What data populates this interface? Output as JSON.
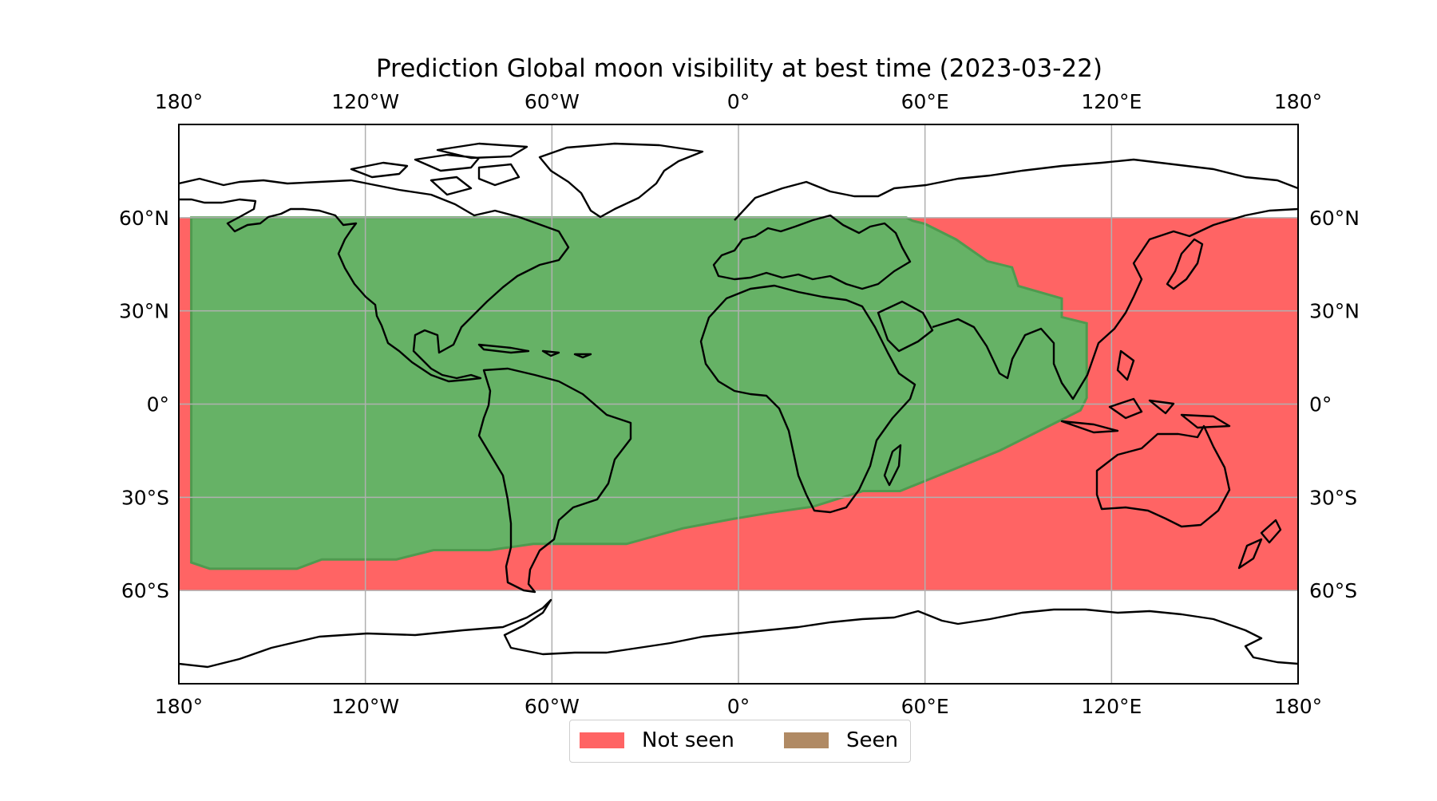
{
  "title": "Prediction Global moon visibility at best time (2023-03-22)",
  "map": {
    "projection": "PlateCarree",
    "lon_ticks": [
      -180,
      -120,
      -60,
      0,
      60,
      120,
      180
    ],
    "lon_labels": [
      "180°",
      "120°W",
      "60°W",
      "0°",
      "60°E",
      "120°E",
      "180°"
    ],
    "lat_ticks": [
      60,
      30,
      0,
      -30,
      -60
    ],
    "lat_labels": [
      "60°N",
      "30°N",
      "0°",
      "30°S",
      "60°S"
    ],
    "lat_extent": [
      -90,
      90
    ],
    "lon_extent": [
      -180,
      180
    ],
    "grid": true,
    "computed_lat_band": [
      -60,
      60
    ]
  },
  "colors": {
    "not_seen": "#ff6464",
    "seen": "#b08a64",
    "visible_region": "#66b266",
    "visible_region_edge": "#4f9a4f",
    "grid": "#b0b0b0"
  },
  "visibility_region": {
    "label": "visible",
    "boundary_lonlat": [
      [
        -176,
        60
      ],
      [
        -176,
        -51
      ],
      [
        -170,
        -53
      ],
      [
        -142,
        -53
      ],
      [
        -134,
        -50
      ],
      [
        -110,
        -50
      ],
      [
        -98,
        -47
      ],
      [
        -80,
        -47
      ],
      [
        -66,
        -45
      ],
      [
        -36,
        -45
      ],
      [
        -18,
        -40
      ],
      [
        -2,
        -37
      ],
      [
        10,
        -35
      ],
      [
        24,
        -33
      ],
      [
        40,
        -28
      ],
      [
        52,
        -28
      ],
      [
        84,
        -15
      ],
      [
        102,
        -6
      ],
      [
        110,
        -2
      ],
      [
        112,
        2
      ],
      [
        112,
        26
      ],
      [
        104,
        28
      ],
      [
        104,
        34
      ],
      [
        90,
        38
      ],
      [
        88,
        44
      ],
      [
        80,
        46
      ],
      [
        70,
        53
      ],
      [
        60,
        58
      ],
      [
        56,
        59
      ],
      [
        54,
        60
      ]
    ]
  },
  "legend": {
    "items": [
      {
        "label": "Not seen",
        "color": "#ff6464"
      },
      {
        "label": "Seen",
        "color": "#b08a64"
      }
    ]
  }
}
